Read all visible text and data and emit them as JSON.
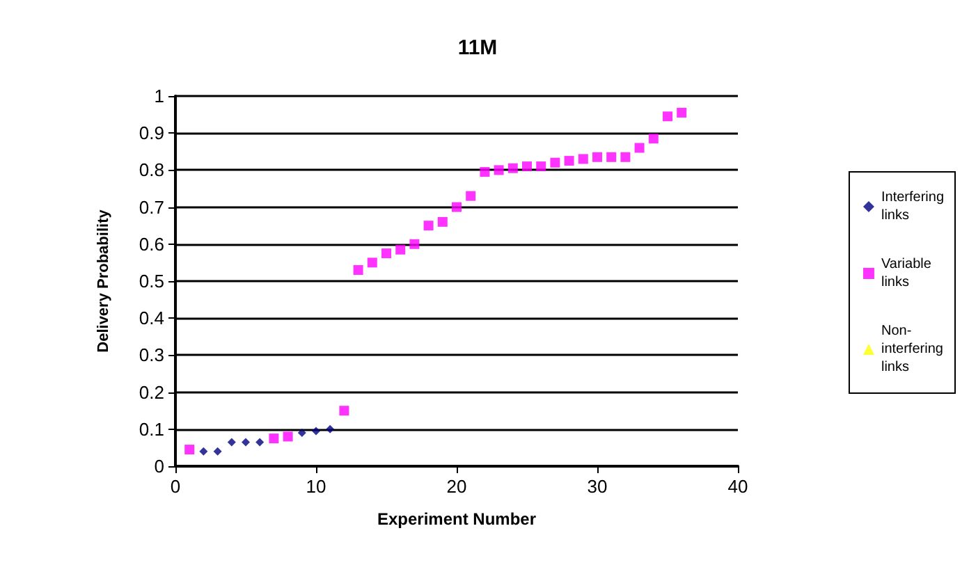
{
  "chart_data": {
    "type": "scatter",
    "title": "11M",
    "xlabel": "Experiment Number",
    "ylabel": "Delivery Probability",
    "xlim": [
      0,
      40
    ],
    "xticks": [
      0,
      10,
      20,
      30,
      40
    ],
    "ylim": [
      0,
      1
    ],
    "yticks": [
      0,
      0.1,
      0.2,
      0.3,
      0.4,
      0.5,
      0.6,
      0.7,
      0.8,
      0.9,
      1
    ],
    "grid": "y",
    "legend": "right",
    "series": [
      {
        "name": "Interfering links",
        "color": "#000080",
        "marker": "diamond",
        "x": [
          2,
          3,
          4,
          5,
          6,
          7,
          8,
          9,
          10,
          11
        ],
        "values": [
          0.04,
          0.04,
          0.065,
          0.065,
          0.065,
          null,
          null,
          0.09,
          0.095,
          0.1
        ]
      },
      {
        "name": "Variable links",
        "color": "#ff00ff",
        "marker": "square",
        "x": [
          1,
          7,
          8,
          12,
          13,
          14,
          15,
          16,
          17,
          18,
          19,
          20,
          21,
          22,
          23,
          24,
          25,
          26,
          27,
          28,
          29,
          30,
          31,
          32,
          33,
          34,
          35,
          36
        ],
        "values": [
          0.045,
          0.075,
          0.08,
          0.15,
          0.53,
          0.55,
          0.575,
          0.585,
          0.6,
          0.65,
          0.66,
          0.7,
          0.73,
          0.795,
          0.8,
          0.805,
          0.81,
          0.81,
          0.82,
          0.825,
          0.83,
          0.835,
          0.835,
          0.835,
          0.86,
          0.885,
          0.945,
          0.955
        ]
      },
      {
        "name": "Non-interfering links",
        "color": "#ffff00",
        "marker": "triangle"
      }
    ]
  }
}
